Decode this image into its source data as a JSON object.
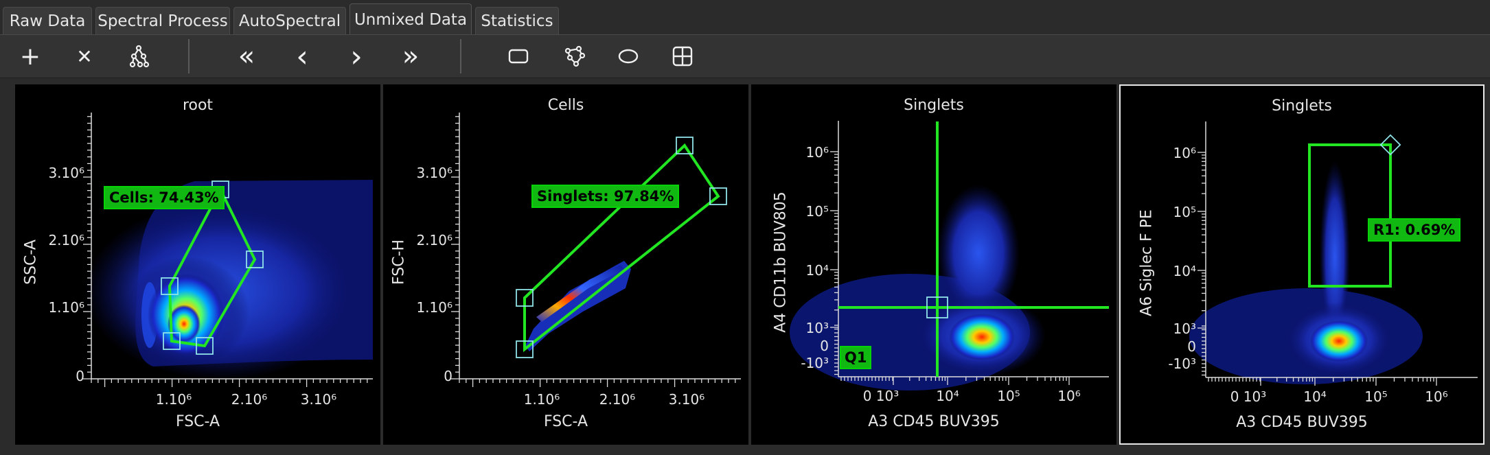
{
  "tabs": [
    {
      "label": "Raw Data",
      "active": false
    },
    {
      "label": "Spectral Process",
      "active": false
    },
    {
      "label": "AutoSpectral",
      "active": false
    },
    {
      "label": "Unmixed Data",
      "active": true
    },
    {
      "label": "Statistics",
      "active": false
    }
  ],
  "toolbar": {
    "add_icon": "+",
    "remove_icon": "✕",
    "first_icon": "«",
    "prev_icon": "‹",
    "next_icon": "›",
    "last_icon": "»"
  },
  "colors": {
    "gate": "#22e622",
    "gate_label_bg": "#12b812",
    "handle": "#8fe3e8",
    "plot_bg": "#000000",
    "ui_bg": "#2b2b2b"
  },
  "plots": [
    {
      "title": "root",
      "xlabel": "FSC-A",
      "ylabel": "SSC-A",
      "yticks": [
        "3.10⁶",
        "2.10⁶",
        "1.10⁶",
        "0"
      ],
      "xticks": [
        "1.10⁶",
        "2.10⁶",
        "3.10⁶"
      ],
      "gate_label": "Cells: 74.43%"
    },
    {
      "title": "Cells",
      "xlabel": "FSC-A",
      "ylabel": "FSC-H",
      "yticks": [
        "3.10⁶",
        "2.10⁶",
        "1.10⁶",
        "0"
      ],
      "xticks": [
        "1.10⁶",
        "2.10⁶",
        "3.10⁶"
      ],
      "gate_label": "Singlets: 97.84%"
    },
    {
      "title": "Singlets",
      "xlabel": "A3 CD45 BUV395",
      "ylabel": "A4 CD11b BUV805",
      "yticks": [
        "10⁶",
        "10⁵",
        "10⁴",
        "10³",
        "0",
        "-10³"
      ],
      "xticks": [
        "0 10³",
        "10⁴",
        "10⁵",
        "10⁶"
      ],
      "gate_label": "Q1"
    },
    {
      "title": "Singlets",
      "xlabel": "A3 CD45 BUV395",
      "ylabel": "A6 Siglec F PE",
      "yticks": [
        "10⁶",
        "10⁵",
        "10⁴",
        "10³",
        "0",
        "-10³"
      ],
      "xticks": [
        "0 10³",
        "10⁴",
        "10⁵",
        "10⁶"
      ],
      "gate_label": "R1: 0.69%"
    }
  ]
}
